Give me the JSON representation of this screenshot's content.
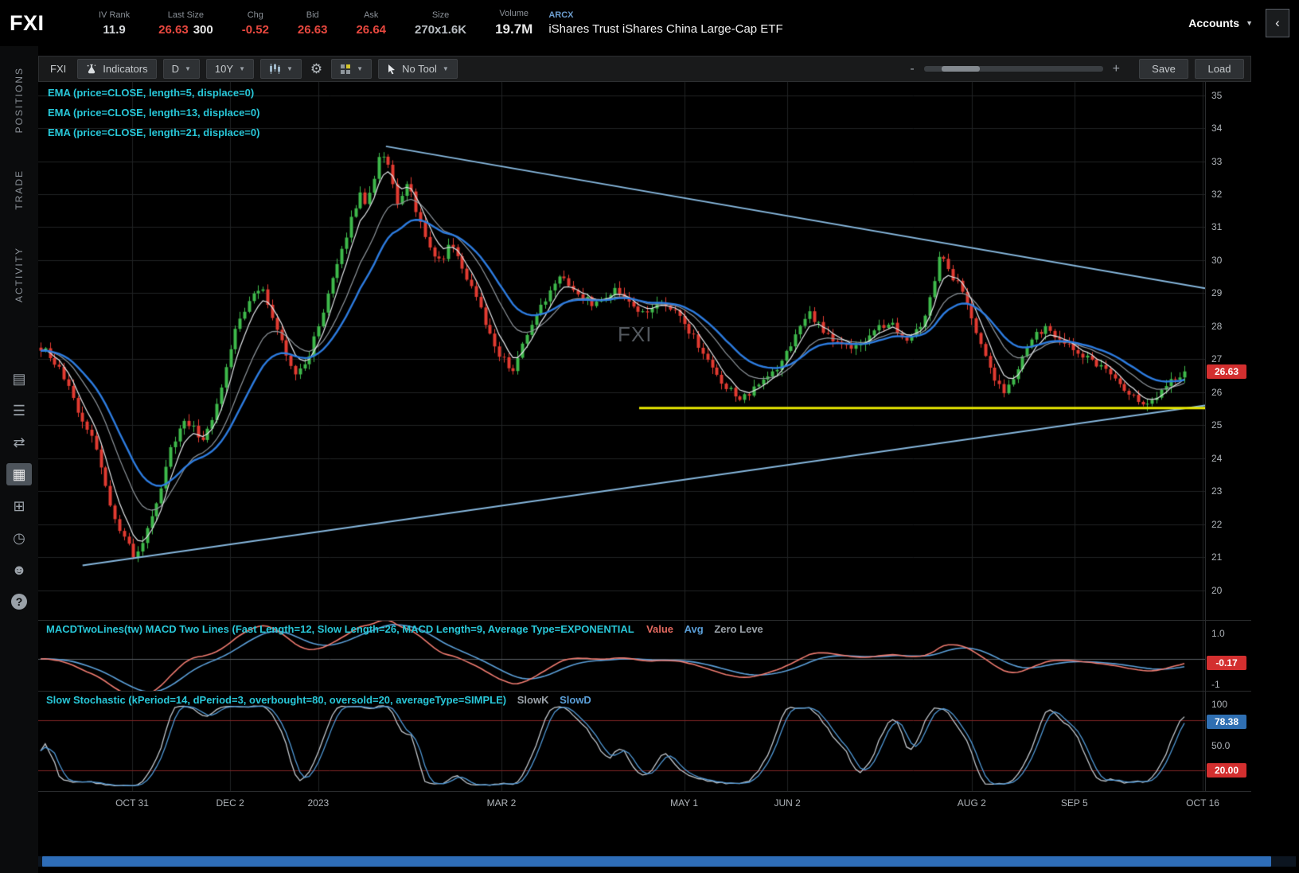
{
  "header": {
    "symbol": "FXI",
    "stats": [
      {
        "label": "IV Rank",
        "value": "11.9",
        "color": "#d6d9dc"
      },
      {
        "label": "Last Size",
        "value": "26.63",
        "color": "#e8483f",
        "extra": "300",
        "extra_color": "#e8e8e8"
      },
      {
        "label": "Chg",
        "value": "-0.52",
        "color": "#e8483f"
      },
      {
        "label": "Bid",
        "value": "26.63",
        "color": "#e8483f"
      },
      {
        "label": "Ask",
        "value": "26.64",
        "color": "#e8483f"
      },
      {
        "label": "Size",
        "value": "270x1.6K",
        "color": "#b9bec3"
      },
      {
        "label": "Volume",
        "value": "19.7M",
        "color": "#e8e8e8",
        "emphasis": true
      }
    ],
    "exchange": "ARCX",
    "description": "iShares Trust iShares China Large-Cap ETF",
    "accounts_label": "Accounts"
  },
  "sidebar": {
    "tabs": [
      "POSITIONS",
      "TRADE",
      "ACTIVITY"
    ],
    "icons": [
      {
        "name": "quotes",
        "glyph": "▤"
      },
      {
        "name": "watchlist",
        "glyph": "☰"
      },
      {
        "name": "trade-panel",
        "glyph": "⇄"
      },
      {
        "name": "charts",
        "glyph": "▦",
        "active": true
      },
      {
        "name": "grid",
        "glyph": "⊞"
      },
      {
        "name": "history",
        "glyph": "◷"
      },
      {
        "name": "community",
        "glyph": "☻"
      },
      {
        "name": "help",
        "glyph": "?"
      }
    ]
  },
  "toolbar": {
    "symbol": "FXI",
    "indicators": "Indicators",
    "timeframe": "D",
    "range": "10Y",
    "tool": "No Tool",
    "zoom_minus": "-",
    "zoom_plus": "+",
    "save": "Save",
    "load": "Load"
  },
  "studies": {
    "emas": [
      "EMA (price=CLOSE, length=5, displace=0)",
      "EMA (price=CLOSE, length=13, displace=0)",
      "EMA (price=CLOSE, length=21, displace=0)"
    ],
    "macd_label": "MACDTwoLines(tw) MACD Two Lines (Fast Length=12, Slow Length=26, MACD Length=9, Average Type=EXPONENTIAL",
    "macd_value_label": "Value",
    "macd_avg_label": "Avg",
    "macd_zero_label": "Zero Leve",
    "stoch_label": "Slow Stochastic (kPeriod=14, dPeriod=3, overbought=80, oversold=20, averageType=SIMPLE)",
    "stoch_k_label": "SlowK",
    "stoch_d_label": "SlowD"
  },
  "watermark": "FXI",
  "chart_data": {
    "type": "candlestick",
    "symbol": "FXI",
    "timeframe": "D",
    "num_candles": 248,
    "last_close": 26.63,
    "price_axis": {
      "labels": [
        35,
        34,
        33,
        32,
        31,
        30,
        29,
        28,
        27,
        26,
        25,
        24,
        23,
        22,
        21,
        20
      ],
      "top_price": 35.4,
      "bottom_price": 19.1,
      "bubble": "26.63"
    },
    "time_labels": [
      {
        "label": "OCT 31",
        "t": 0.0805
      },
      {
        "label": "DEC 2",
        "t": 0.1645
      },
      {
        "label": "2023",
        "t": 0.24
      },
      {
        "label": "MAR 2",
        "t": 0.397
      },
      {
        "label": "MAY 1",
        "t": 0.5536
      },
      {
        "label": "JUN 2",
        "t": 0.642
      },
      {
        "label": "AUG 2",
        "t": 0.8
      },
      {
        "label": "SEP 5",
        "t": 0.888
      },
      {
        "label": "OCT 16",
        "t": 0.998
      }
    ],
    "price_anchors": [
      [
        0,
        27.35
      ],
      [
        0.01,
        27.05
      ],
      [
        0.022,
        26.3
      ],
      [
        0.034,
        25.2
      ],
      [
        0.046,
        24.65
      ],
      [
        0.056,
        23.2
      ],
      [
        0.066,
        21.95
      ],
      [
        0.076,
        21.4
      ],
      [
        0.083,
        20.9
      ],
      [
        0.092,
        21.7
      ],
      [
        0.102,
        22.7
      ],
      [
        0.113,
        24.2
      ],
      [
        0.124,
        25.1
      ],
      [
        0.134,
        24.9
      ],
      [
        0.143,
        24.5
      ],
      [
        0.153,
        25.6
      ],
      [
        0.163,
        26.9
      ],
      [
        0.172,
        28.1
      ],
      [
        0.182,
        28.7
      ],
      [
        0.192,
        29.2
      ],
      [
        0.202,
        28.4
      ],
      [
        0.212,
        27.4
      ],
      [
        0.222,
        26.6
      ],
      [
        0.232,
        26.85
      ],
      [
        0.242,
        27.95
      ],
      [
        0.252,
        29.0
      ],
      [
        0.262,
        30.2
      ],
      [
        0.272,
        31.3
      ],
      [
        0.279,
        32.1
      ],
      [
        0.285,
        31.6
      ],
      [
        0.291,
        32.5
      ],
      [
        0.298,
        33.35
      ],
      [
        0.306,
        32.55
      ],
      [
        0.313,
        31.6
      ],
      [
        0.321,
        32.3
      ],
      [
        0.331,
        31.2
      ],
      [
        0.341,
        30.3
      ],
      [
        0.351,
        30.0
      ],
      [
        0.359,
        30.6
      ],
      [
        0.367,
        29.8
      ],
      [
        0.376,
        29.2
      ],
      [
        0.386,
        28.4
      ],
      [
        0.396,
        27.4
      ],
      [
        0.406,
        26.9
      ],
      [
        0.414,
        26.7
      ],
      [
        0.423,
        27.6
      ],
      [
        0.433,
        28.3
      ],
      [
        0.444,
        29.0
      ],
      [
        0.454,
        29.45
      ],
      [
        0.464,
        29.2
      ],
      [
        0.474,
        28.9
      ],
      [
        0.484,
        28.6
      ],
      [
        0.494,
        28.9
      ],
      [
        0.504,
        29.1
      ],
      [
        0.514,
        28.8
      ],
      [
        0.524,
        28.4
      ],
      [
        0.534,
        28.55
      ],
      [
        0.544,
        28.7
      ],
      [
        0.554,
        28.4
      ],
      [
        0.564,
        28.0
      ],
      [
        0.574,
        27.5
      ],
      [
        0.584,
        26.9
      ],
      [
        0.594,
        26.3
      ],
      [
        0.604,
        26.0
      ],
      [
        0.614,
        25.8
      ],
      [
        0.624,
        26.1
      ],
      [
        0.634,
        26.4
      ],
      [
        0.643,
        26.65
      ],
      [
        0.653,
        27.3
      ],
      [
        0.663,
        27.9
      ],
      [
        0.671,
        28.45
      ],
      [
        0.679,
        28.1
      ],
      [
        0.689,
        27.7
      ],
      [
        0.699,
        27.4
      ],
      [
        0.709,
        27.3
      ],
      [
        0.719,
        27.55
      ],
      [
        0.729,
        27.9
      ],
      [
        0.739,
        28.1
      ],
      [
        0.747,
        28.0
      ],
      [
        0.755,
        27.6
      ],
      [
        0.763,
        27.85
      ],
      [
        0.771,
        28.15
      ],
      [
        0.779,
        29.0
      ],
      [
        0.785,
        30.15
      ],
      [
        0.791,
        29.9
      ],
      [
        0.798,
        29.45
      ],
      [
        0.804,
        29.2
      ],
      [
        0.813,
        28.4
      ],
      [
        0.823,
        27.3
      ],
      [
        0.833,
        26.5
      ],
      [
        0.841,
        26.0
      ],
      [
        0.851,
        26.55
      ],
      [
        0.861,
        27.25
      ],
      [
        0.871,
        27.8
      ],
      [
        0.879,
        27.95
      ],
      [
        0.889,
        27.7
      ],
      [
        0.899,
        27.4
      ],
      [
        0.909,
        27.2
      ],
      [
        0.919,
        26.9
      ],
      [
        0.929,
        26.7
      ],
      [
        0.939,
        26.4
      ],
      [
        0.949,
        26.1
      ],
      [
        0.959,
        25.8
      ],
      [
        0.967,
        25.6
      ],
      [
        0.975,
        25.9
      ],
      [
        0.985,
        26.35
      ],
      [
        0.993,
        26.5
      ],
      [
        1,
        26.63
      ]
    ],
    "trendlines": [
      {
        "name": "descending-trendline",
        "t1": 0.298,
        "p1": 33.45,
        "t2": 1.0,
        "p2": 29.15,
        "color": "#86b7dd",
        "width": 2
      },
      {
        "name": "ascending-trendline",
        "t1": 0.038,
        "p1": 20.75,
        "t2": 1.0,
        "p2": 25.6,
        "color": "#86b7dd",
        "width": 2
      },
      {
        "name": "support-line",
        "t1": 0.515,
        "p1": 25.52,
        "t2": 1.0,
        "p2": 25.52,
        "color": "#e6e600",
        "width": 3
      }
    ],
    "ema_lengths": [
      5,
      13,
      21
    ],
    "ema_colors": {
      "ema5": "#e3e6e9",
      "ema13": "#8f969c",
      "ema21": "#2d7ce0"
    },
    "candle_colors": {
      "up": "#3eb94b",
      "down": "#e23b31"
    },
    "grid_color": "#202325",
    "macd": {
      "fast": 12,
      "slow": 26,
      "signal": 9,
      "top_value": 1.5,
      "bottom_value": -1.25,
      "value_color": "#ef7b70",
      "avg_color": "#5b9fd8",
      "axis_top": "1.0",
      "axis_bottom": "-1",
      "bubble": "-0.17"
    },
    "stoch": {
      "k_period": 14,
      "d_period": 3,
      "overbought": 80,
      "oversold": 20,
      "top_value": 115,
      "bottom_value": -5,
      "k_color": "#c2c7cc",
      "d_color": "#4f97d4",
      "level_color": "#7e2424",
      "axis_top": "100",
      "axis_mid": "50.0",
      "bubble_d": "78.38",
      "bubble_level": "20.00"
    }
  }
}
